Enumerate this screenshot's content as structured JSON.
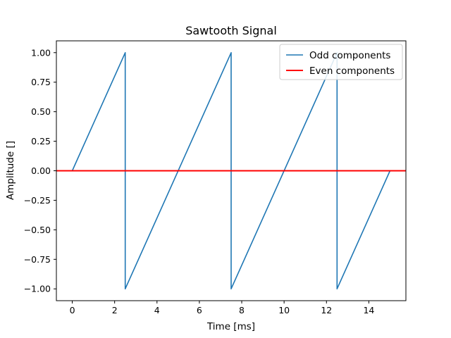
{
  "chart_data": {
    "type": "line",
    "title": "Sawtooth Signal",
    "xlabel": "Time [ms]",
    "ylabel": "Amplitude []",
    "xlim": [
      -0.75,
      15.75
    ],
    "ylim": [
      -1.1,
      1.1
    ],
    "xticks": [
      0,
      2,
      4,
      6,
      8,
      10,
      12,
      14
    ],
    "yticks": [
      1.0,
      0.75,
      0.5,
      0.25,
      0.0,
      -0.25,
      -0.5,
      -0.75,
      -1.0
    ],
    "xtick_labels": [
      "0",
      "2",
      "4",
      "6",
      "8",
      "10",
      "12",
      "14"
    ],
    "ytick_labels": [
      "1.00",
      "0.75",
      "0.50",
      "0.25",
      "0.00",
      "−0.25",
      "−0.50",
      "−0.75",
      "−1.00"
    ],
    "grid": false,
    "legend_position": "top-right",
    "series": [
      {
        "name": "Odd components",
        "color": "#1f77b4",
        "x": [
          0,
          2.5,
          2.5,
          7.5,
          7.5,
          12.5,
          12.5,
          15
        ],
        "y": [
          0,
          1,
          -1,
          1,
          -1,
          1,
          -1,
          0
        ]
      },
      {
        "name": "Even components",
        "color": "#ff0000",
        "x": [
          -0.75,
          15.75
        ],
        "y": [
          0,
          0
        ]
      }
    ]
  }
}
